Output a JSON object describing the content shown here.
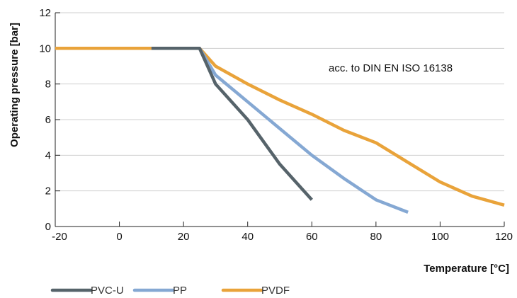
{
  "chart_data": {
    "type": "line",
    "title": "",
    "xlabel": "Temperature [°C]",
    "ylabel": "Operating pressure [bar]",
    "annotation": "acc. to DIN EN ISO 16138",
    "xlim": [
      -20,
      120
    ],
    "ylim": [
      0,
      12
    ],
    "x_ticks": [
      "-20",
      "0",
      "20",
      "40",
      "60",
      "80",
      "100",
      "120"
    ],
    "y_ticks": [
      "0",
      "2",
      "4",
      "6",
      "8",
      "10",
      "12"
    ],
    "grid": "horizontal",
    "legend_position": "bottom-left",
    "series": [
      {
        "name": "PVDF",
        "color": "#e9a33a",
        "points": [
          [
            -20,
            10
          ],
          [
            25,
            10
          ],
          [
            30,
            9
          ],
          [
            40,
            8
          ],
          [
            50,
            7.1
          ],
          [
            60,
            6.3
          ],
          [
            70,
            5.4
          ],
          [
            80,
            4.7
          ],
          [
            90,
            3.6
          ],
          [
            100,
            2.5
          ],
          [
            110,
            1.7
          ],
          [
            120,
            1.2
          ]
        ]
      },
      {
        "name": "PP",
        "color": "#85a8d3",
        "points": [
          [
            10,
            10
          ],
          [
            25,
            10
          ],
          [
            30,
            8.5
          ],
          [
            40,
            7
          ],
          [
            50,
            5.5
          ],
          [
            60,
            4
          ],
          [
            70,
            2.7
          ],
          [
            80,
            1.5
          ],
          [
            90,
            0.8
          ]
        ]
      },
      {
        "name": "PVC-U",
        "color": "#56636a",
        "points": [
          [
            10,
            10
          ],
          [
            25,
            10
          ],
          [
            30,
            8
          ],
          [
            40,
            6
          ],
          [
            50,
            3.5
          ],
          [
            60,
            1.5
          ]
        ]
      }
    ],
    "legend_order": [
      "PVC-U",
      "PP",
      "PVDF"
    ]
  }
}
